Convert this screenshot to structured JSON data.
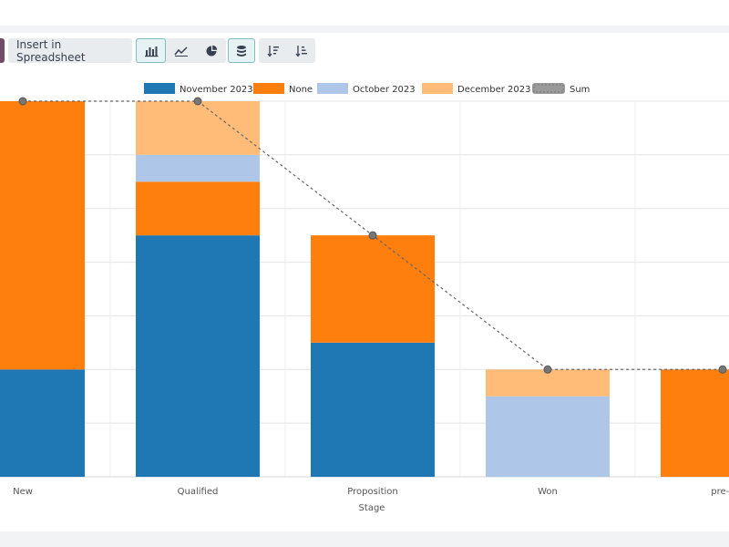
{
  "toolbar": {
    "insert_label": "Insert in Spreadsheet",
    "buttons": [
      {
        "name": "bar-chart-icon",
        "active": true
      },
      {
        "name": "line-chart-icon",
        "active": false
      },
      {
        "name": "pie-chart-icon",
        "active": false
      },
      {
        "name": "stacked-icon",
        "active": true
      },
      {
        "name": "sort-descending-icon",
        "active": false
      },
      {
        "name": "sort-ascending-icon",
        "active": false
      }
    ]
  },
  "colors": {
    "accent": "#714b67",
    "november": "#1f77b4",
    "none": "#ff7f0e",
    "october": "#aec7e8",
    "december": "#ffbb78",
    "sum": "#999999"
  },
  "chart_data": {
    "type": "bar",
    "stacked": true,
    "xlabel": "Stage",
    "categories": [
      "New",
      "Qualified",
      "Proposition",
      "Won",
      "pre-c"
    ],
    "ylim": [
      0,
      7
    ],
    "grid": true,
    "legend_position": "top",
    "series": [
      {
        "name": "November 2023",
        "values": [
          2,
          4.5,
          2.5,
          0,
          0
        ],
        "color": "#1f77b4"
      },
      {
        "name": "None",
        "values": [
          5,
          1,
          2,
          0,
          2
        ],
        "color": "#ff7f0e"
      },
      {
        "name": "October 2023",
        "values": [
          0,
          0.5,
          0,
          1.5,
          0
        ],
        "color": "#aec7e8"
      },
      {
        "name": "December 2023",
        "values": [
          0,
          1,
          0,
          0.5,
          0
        ],
        "color": "#ffbb78"
      }
    ],
    "sum_series": {
      "name": "Sum",
      "values": [
        7,
        7,
        4.5,
        2,
        2
      ]
    }
  }
}
